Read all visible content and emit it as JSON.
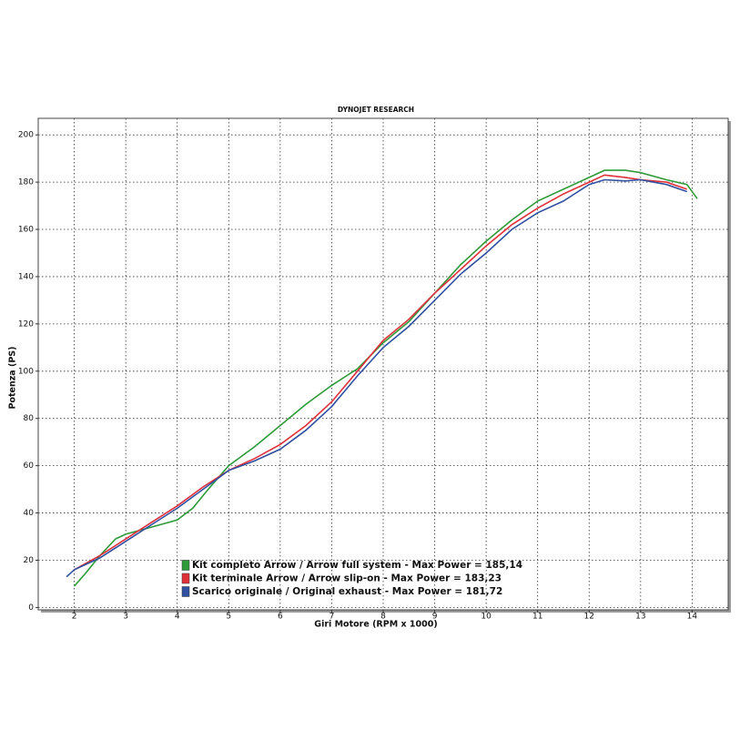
{
  "chart_data": {
    "type": "line",
    "title": "DYNOJET RESEARCH",
    "x_label": "Giri Motore (RPM x 1000)",
    "y_label": "Potenza (PS)",
    "xlim": [
      1.3,
      14.7
    ],
    "ylim": [
      -1,
      207
    ],
    "xticks": [
      2,
      3,
      4,
      5,
      6,
      7,
      8,
      9,
      10,
      11,
      12,
      13,
      14
    ],
    "yticks": [
      0,
      20,
      40,
      60,
      80,
      100,
      120,
      140,
      160,
      180,
      200
    ],
    "grid": true,
    "legend": "lower left",
    "series": [
      {
        "name": "Kit completo Arrow / Arrow full system - Max Power = 185,14",
        "color": "#2e9a3a",
        "x": [
          2.0,
          2.2,
          2.5,
          2.8,
          3.0,
          3.5,
          4.0,
          4.3,
          4.6,
          5.0,
          5.5,
          6.0,
          6.5,
          7.0,
          7.5,
          8.0,
          8.5,
          9.0,
          9.5,
          10.0,
          10.5,
          11.0,
          11.5,
          12.0,
          12.3,
          12.7,
          13.0,
          13.5,
          13.9,
          14.1
        ],
        "values": [
          9,
          14,
          22,
          29,
          31,
          34,
          37,
          42,
          50,
          60,
          68,
          77,
          86,
          94,
          101,
          112,
          121,
          133,
          145,
          155,
          164,
          172,
          177,
          182,
          185,
          185,
          184,
          181,
          179,
          173
        ]
      },
      {
        "name": "Kit terminale Arrow / Arrow slip-on - Max Power = 183,23",
        "color": "#e0303a",
        "x": [
          2.0,
          2.5,
          3.0,
          3.5,
          4.0,
          4.5,
          5.0,
          5.5,
          6.0,
          6.5,
          7.0,
          7.5,
          8.0,
          8.5,
          9.0,
          9.5,
          10.0,
          10.5,
          11.0,
          11.5,
          12.0,
          12.3,
          12.7,
          13.0,
          13.5,
          13.9
        ],
        "values": [
          16,
          22,
          29,
          36,
          43,
          51,
          58,
          63,
          69,
          77,
          87,
          100,
          113,
          122,
          133,
          143,
          153,
          162,
          169,
          175,
          180,
          183,
          182,
          181,
          180,
          177
        ]
      },
      {
        "name": "Scarico originale / Original exhaust - Max Power = 181,72",
        "color": "#3050a0",
        "x": [
          1.85,
          2.0,
          2.5,
          3.0,
          3.5,
          4.0,
          4.5,
          5.0,
          5.5,
          6.0,
          6.5,
          7.0,
          7.5,
          8.0,
          8.5,
          9.0,
          9.5,
          10.0,
          10.5,
          11.0,
          11.5,
          12.0,
          12.3,
          12.7,
          13.0,
          13.5,
          13.9
        ],
        "values": [
          13,
          16,
          21,
          28,
          35,
          42,
          50,
          58,
          62,
          67,
          75,
          85,
          98,
          110,
          119,
          130,
          141,
          150,
          160,
          167,
          172,
          179,
          181,
          180.5,
          181,
          179,
          176
        ]
      }
    ]
  }
}
